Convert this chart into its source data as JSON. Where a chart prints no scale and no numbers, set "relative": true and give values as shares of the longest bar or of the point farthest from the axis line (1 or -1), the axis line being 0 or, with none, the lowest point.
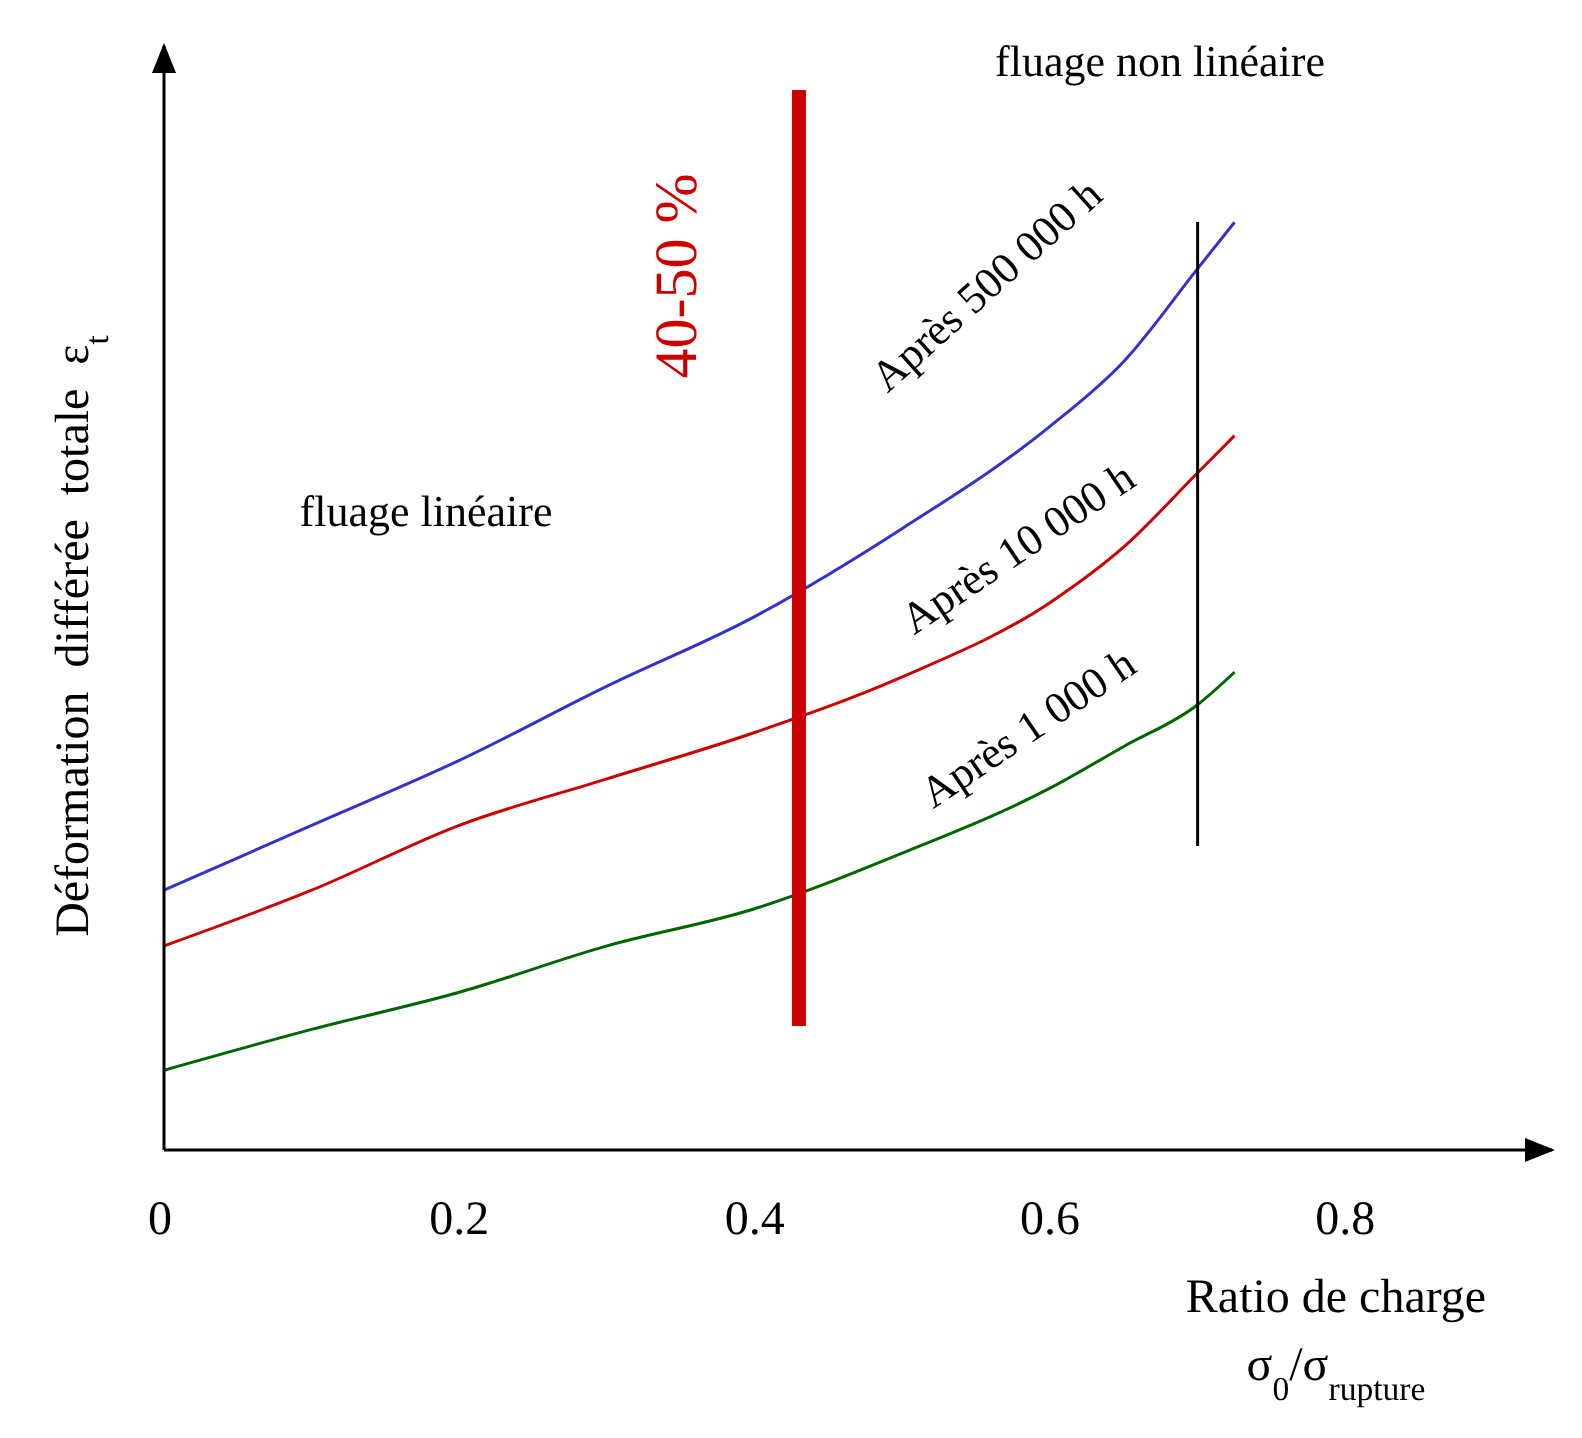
{
  "chart_data": {
    "type": "line",
    "relative": true,
    "xlabel": "Ratio de charge\nσ$_{0}$/σ$_{rupture}$",
    "ylabel": "Déformation  différée  totale  ε$_{t}$",
    "xlim": [
      0,
      0.94
    ],
    "xticks": [
      0,
      0.2,
      0.4,
      0.6,
      0.8
    ],
    "grid": false,
    "legend": false,
    "marker": "none",
    "line_style": "solid",
    "x": [
      0,
      0.1,
      0.2,
      0.3,
      0.4,
      0.5,
      0.6,
      0.65,
      0.7,
      0.725
    ],
    "series": [
      {
        "name": "Après 500 000 h",
        "color": "#3333cc",
        "values": [
          0.28,
          0.35,
          0.42,
          0.5,
          0.575,
          0.67,
          0.78,
          0.85,
          0.95,
          1
        ]
      },
      {
        "name": "Après 10 000 h",
        "color": "#cc0000",
        "values": [
          0.22,
          0.28,
          0.35,
          0.4,
          0.45,
          0.51,
          0.59,
          0.65,
          0.73,
          0.77
        ]
      },
      {
        "name": "Après 1 000 h",
        "color": "#006600",
        "values": [
          0.086,
          0.13,
          0.17,
          0.22,
          0.26,
          0.32,
          0.39,
          0.435,
          0.48,
          0.515
        ]
      }
    ],
    "ref_lines": [
      {
        "axis": "x",
        "value": 0.43,
        "color": "#cc0000"
      },
      {
        "axis": "x",
        "value": 0.7,
        "color": "#000000"
      }
    ],
    "annotations": [
      "fluage  linéaire",
      "fluage  non linéaire",
      "40-50 %"
    ]
  }
}
